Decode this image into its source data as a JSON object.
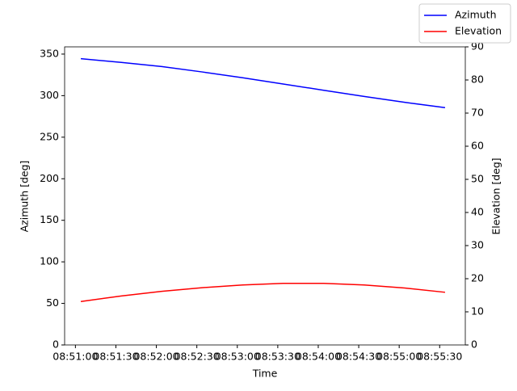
{
  "chart_data": {
    "type": "line",
    "xlabel": "Time",
    "ylabel": "Azimuth [deg]",
    "y2label": "Elevation [deg]",
    "x": [
      "08:51:04",
      "08:51:34",
      "08:52:04",
      "08:52:34",
      "08:53:04",
      "08:53:34",
      "08:54:04",
      "08:54:34",
      "08:55:04",
      "08:55:34"
    ],
    "series": [
      {
        "name": "Azimuth",
        "color": "#0000ff",
        "values": [
          344.5,
          340,
          335,
          328.5,
          321.5,
          314,
          306.5,
          299,
          292,
          285.5
        ]
      },
      {
        "name": "Elevation",
        "color": "#ff0000",
        "axis": "y2",
        "values": [
          13.1,
          14.8,
          16.2,
          17.3,
          18.1,
          18.6,
          18.6,
          18.1,
          17.2,
          15.9
        ]
      }
    ],
    "xlim": [
      "08:50:52",
      "08:55:49"
    ],
    "xticks": [
      "08:51:00",
      "08:51:30",
      "08:52:00",
      "08:52:30",
      "08:53:00",
      "08:53:30",
      "08:54:00",
      "08:54:30",
      "08:55:00",
      "08:55:30"
    ],
    "ylim": [
      0,
      358.7
    ],
    "yticks": [
      0,
      50,
      100,
      150,
      200,
      250,
      300,
      350
    ],
    "y2lim": [
      0,
      90
    ],
    "y2ticks": [
      0,
      10,
      20,
      30,
      40,
      50,
      60,
      70,
      80,
      90
    ],
    "legend": "upper right"
  }
}
